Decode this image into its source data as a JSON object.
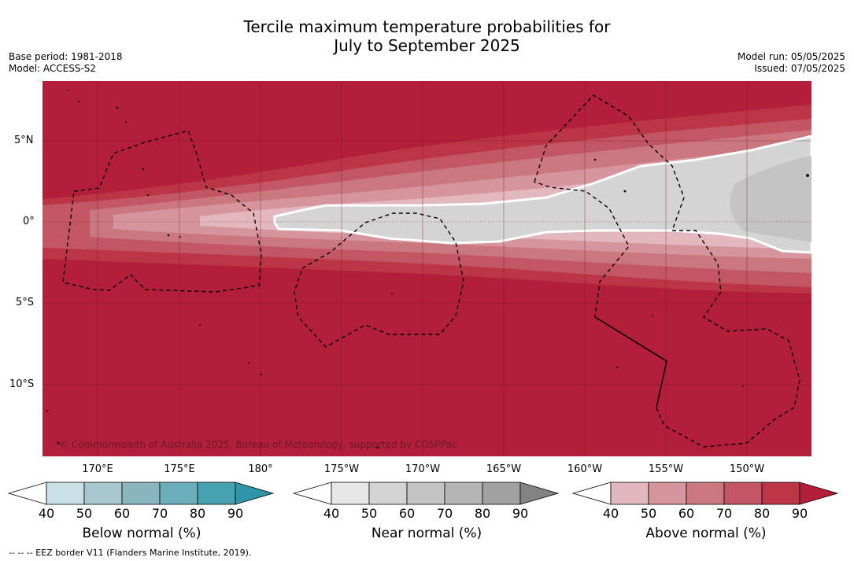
{
  "title": {
    "line1": "Tercile maximum temperature probabilities for",
    "line2": "July to September 2025"
  },
  "meta": {
    "base_period": "Base period: 1981-2018",
    "model": "Model: ACCESS-S2",
    "model_run": "Model run: 05/05/2025",
    "issued": "Issued: 07/05/2025"
  },
  "map": {
    "latitude_labels": [
      "5°N",
      "0°",
      "5°S",
      "10°S"
    ],
    "longitude_labels": [
      "170°E",
      "175°E",
      "180°",
      "175°W",
      "170°W",
      "165°W",
      "160°W",
      "155°W",
      "150°W"
    ],
    "copyright": "© Commonwealth of Australia 2025, Bureau of Meteorology, supported by COSPPac",
    "background_color": "#b31e3a",
    "near_normal_color": "#d4d4d4"
  },
  "colorbars": [
    {
      "title": "Below normal (%)",
      "ticks": [
        "40",
        "50",
        "60",
        "70",
        "80",
        "90"
      ],
      "colors": [
        "#ffffff",
        "#c9e0e6",
        "#a6c7cd",
        "#89b5c0",
        "#6aadbb",
        "#46a1b1",
        "#2f95a8"
      ]
    },
    {
      "title": "Near normal (%)",
      "ticks": [
        "40",
        "50",
        "60",
        "70",
        "80",
        "90"
      ],
      "colors": [
        "#ffffff",
        "#e6e6e6",
        "#d4d4d4",
        "#c4c4c4",
        "#b5b5b5",
        "#a1a1a1",
        "#828282"
      ]
    },
    {
      "title": "Above normal (%)",
      "ticks": [
        "40",
        "50",
        "60",
        "70",
        "80",
        "90"
      ],
      "colors": [
        "#ffffff",
        "#e2b8be",
        "#d6949c",
        "#cb7780",
        "#c35664",
        "#bb3547",
        "#b31e3a"
      ]
    }
  ],
  "footnote": "--  --  -- EEZ border V11 (Flanders Marine Institute, 2019)."
}
